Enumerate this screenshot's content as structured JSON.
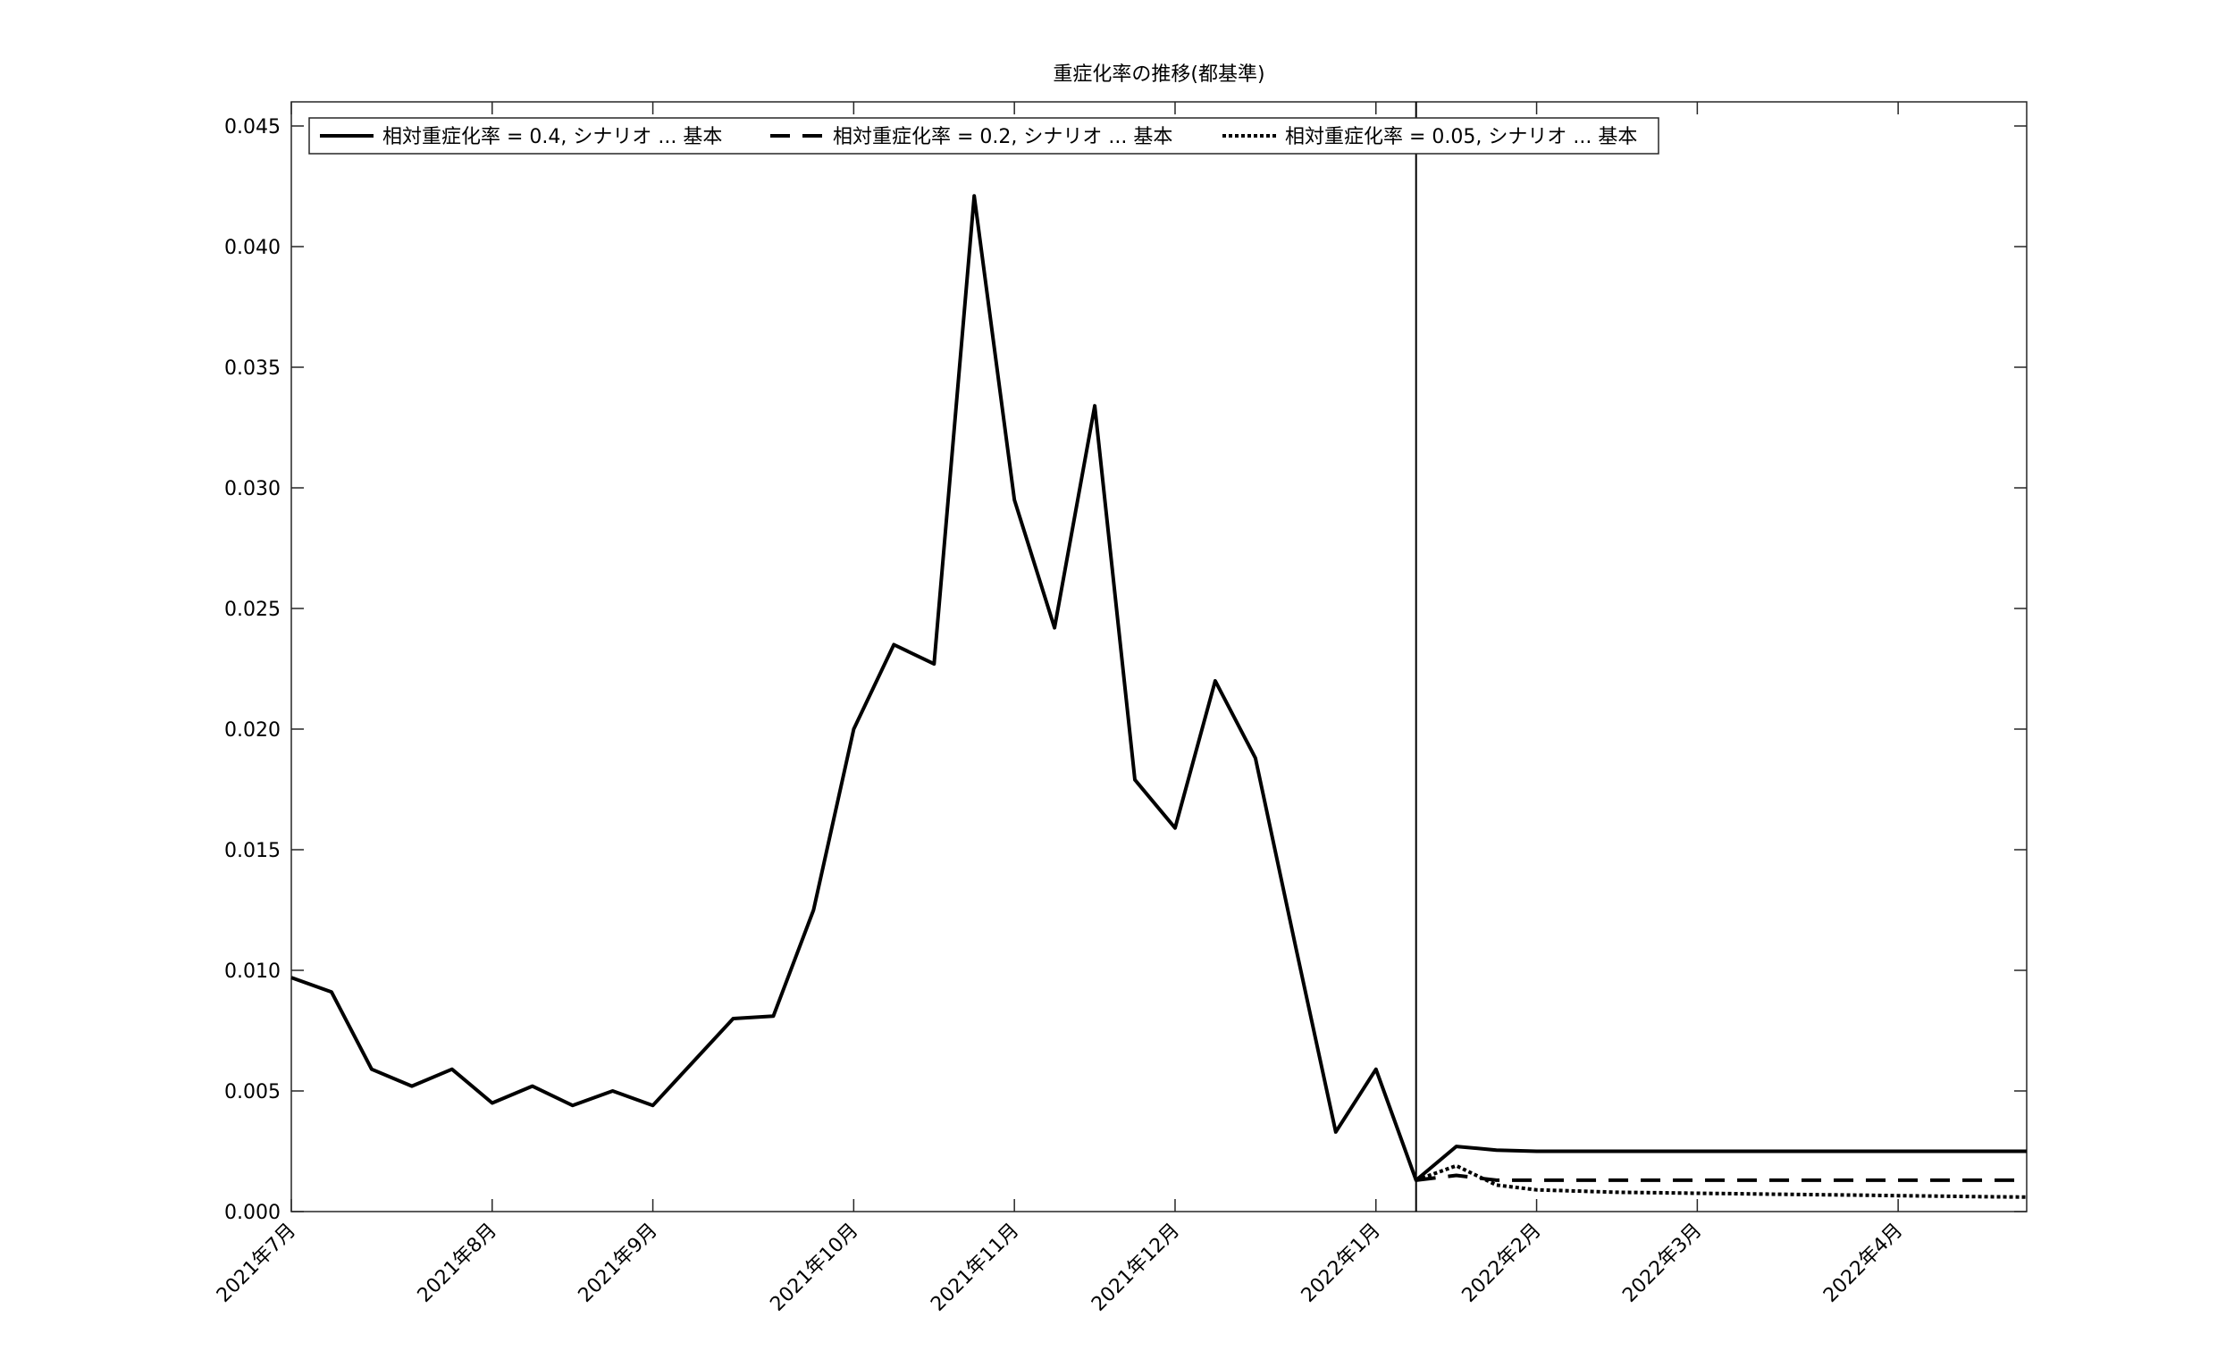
{
  "chart_data": {
    "type": "line",
    "title": "重症化率の推移(都基準)",
    "xlabel": "",
    "ylabel": "",
    "ylim": [
      0,
      0.046
    ],
    "yticks": [
      "0.000",
      "0.005",
      "0.010",
      "0.015",
      "0.020",
      "0.025",
      "0.030",
      "0.035",
      "0.040",
      "0.045"
    ],
    "ytick_values": [
      0,
      0.005,
      0.01,
      0.015,
      0.02,
      0.025,
      0.03,
      0.035,
      0.04,
      0.045
    ],
    "xlim_weeks": [
      0,
      43.2
    ],
    "xticks": [
      {
        "label": "2021年7月",
        "week": 0
      },
      {
        "label": "2021年8月",
        "week": 5
      },
      {
        "label": "2021年9月",
        "week": 9
      },
      {
        "label": "2021年10月",
        "week": 14
      },
      {
        "label": "2021年11月",
        "week": 18
      },
      {
        "label": "2021年12月",
        "week": 22
      },
      {
        "label": "2022年1月",
        "week": 27
      },
      {
        "label": "2022年2月",
        "week": 31
      },
      {
        "label": "2022年3月",
        "week": 35
      },
      {
        "label": "2022年4月",
        "week": 40
      }
    ],
    "vertical_line_week": 28,
    "series": [
      {
        "name": "相対重症化率 = 0.4, シナリオ ... 基本",
        "style": "solid",
        "x": [
          0,
          1,
          2,
          3,
          4,
          5,
          6,
          7,
          8,
          9,
          10,
          11,
          12,
          13,
          14,
          15,
          16,
          17,
          18,
          19,
          20,
          21,
          22,
          23,
          24,
          25,
          26,
          27,
          28,
          29,
          30,
          31,
          32,
          33,
          34,
          35,
          36,
          37,
          38,
          39,
          40,
          41,
          42,
          43.2
        ],
        "values": [
          0.0097,
          0.0091,
          0.0059,
          0.0052,
          0.0059,
          0.0045,
          0.0052,
          0.0044,
          0.005,
          0.0044,
          0.0062,
          0.008,
          0.0081,
          0.0125,
          0.02,
          0.0235,
          0.0227,
          0.0421,
          0.0295,
          0.0242,
          0.0334,
          0.0179,
          0.0159,
          0.022,
          0.0188,
          0.011,
          0.0033,
          0.0059,
          0.0013,
          0.0027,
          0.00255,
          0.0025,
          0.0025,
          0.0025,
          0.0025,
          0.0025,
          0.0025,
          0.0025,
          0.0025,
          0.0025,
          0.0025,
          0.0025,
          0.0025,
          0.0025
        ]
      },
      {
        "name": "相対重症化率 = 0.2, シナリオ ... 基本",
        "style": "dashed",
        "x": [
          28,
          29,
          30,
          31,
          32,
          33,
          34,
          35,
          36,
          37,
          38,
          39,
          40,
          41,
          42,
          43.2
        ],
        "values": [
          0.0013,
          0.0015,
          0.0013,
          0.0013,
          0.0013,
          0.0013,
          0.0013,
          0.0013,
          0.0013,
          0.0013,
          0.0013,
          0.0013,
          0.0013,
          0.0013,
          0.0013,
          0.0013
        ]
      },
      {
        "name": "相対重症化率 = 0.05, シナリオ ... 基本",
        "style": "dotted",
        "x": [
          28,
          29,
          30,
          31,
          32,
          33,
          34,
          35,
          36,
          37,
          38,
          39,
          40,
          41,
          42,
          43.2
        ],
        "values": [
          0.0013,
          0.0019,
          0.0011,
          0.0009,
          0.00085,
          0.0008,
          0.00078,
          0.00076,
          0.00074,
          0.00072,
          0.0007,
          0.00068,
          0.00066,
          0.00064,
          0.00062,
          0.0006
        ]
      }
    ],
    "legend_location": "top-left, horizontal"
  }
}
